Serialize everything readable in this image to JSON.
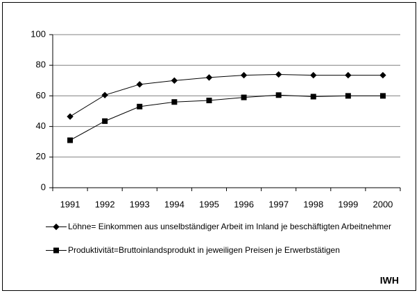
{
  "chart_data": {
    "type": "line",
    "categories": [
      "1991",
      "1992",
      "1993",
      "1994",
      "1995",
      "1996",
      "1997",
      "1998",
      "1999",
      "2000"
    ],
    "series": [
      {
        "name": "Löhne= Einkommen aus unselbständiger Arbeit im Inland je beschäftigten Arbeitnehmer",
        "color": "#000000",
        "marker": "diamond",
        "values": [
          46.5,
          60.5,
          67.5,
          70,
          72,
          73.5,
          74,
          73.5,
          73.5,
          73.5
        ]
      },
      {
        "name": "Produktivität=Bruttoinlandsprodukt in jeweiligen Preisen je Erwerbstätigen",
        "color": "#000000",
        "marker": "square",
        "values": [
          31,
          43.5,
          53,
          56,
          57,
          59,
          60.5,
          59.5,
          60,
          60
        ]
      }
    ],
    "ylim": [
      0,
      100
    ],
    "yticks": [
      0,
      20,
      40,
      60,
      80,
      100
    ],
    "grid": true,
    "source": "IWH"
  }
}
